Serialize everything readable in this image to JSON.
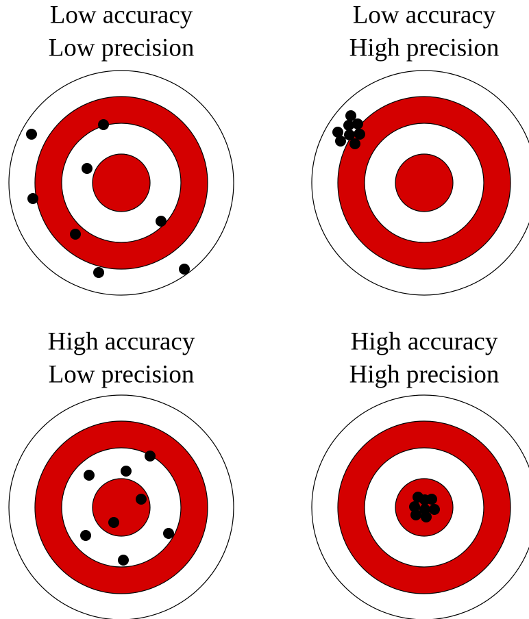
{
  "panels": [
    {
      "accuracy": "Low accuracy",
      "precision": "Low precision"
    },
    {
      "accuracy": "Low accuracy",
      "precision": "High precision"
    },
    {
      "accuracy": "High accuracy",
      "precision": "Low precision"
    },
    {
      "accuracy": "High accuracy",
      "precision": "High precision"
    }
  ]
}
